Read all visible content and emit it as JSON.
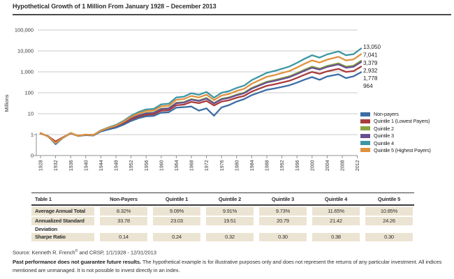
{
  "title": "Hypothetical Growth of 1 Million From January 1928 – December 2013",
  "chart_data": {
    "type": "line",
    "title": "Hypothetical Growth of 1 Million From January 1928 – December 2013",
    "ylabel": "Millions",
    "y_scale": "log",
    "grid": "horizontal",
    "legend_position": "right-bottom",
    "y_ticks": [
      "100,000",
      "10,000",
      "1,000",
      "100",
      "10",
      "1",
      "0"
    ],
    "x_ticks": [
      1928,
      1932,
      1936,
      1940,
      1944,
      1948,
      1952,
      1956,
      1960,
      1964,
      1968,
      1972,
      1976,
      1980,
      1984,
      1988,
      1992,
      1996,
      2000,
      2004,
      2008,
      2012
    ],
    "xlim": [
      1928,
      2013
    ],
    "end_labels": [
      "13,050",
      "7,041",
      "3,379",
      "2,932",
      "1,778",
      "964"
    ],
    "years": [
      1928,
      1930,
      1932,
      1934,
      1936,
      1938,
      1940,
      1942,
      1944,
      1946,
      1948,
      1950,
      1952,
      1954,
      1956,
      1958,
      1960,
      1962,
      1964,
      1966,
      1968,
      1970,
      1972,
      1974,
      1976,
      1978,
      1980,
      1982,
      1984,
      1986,
      1988,
      1990,
      1992,
      1994,
      1996,
      1998,
      2000,
      2002,
      2004,
      2007,
      2009,
      2011,
      2013
    ],
    "series": [
      {
        "name": "Non-payers",
        "color": "#3c6da5",
        "final_value": 964,
        "values": [
          1.14,
          0.85,
          0.35,
          0.72,
          1.14,
          0.85,
          0.95,
          0.9,
          1.41,
          1.77,
          2.16,
          2.97,
          4.5,
          6.1,
          7.5,
          7.8,
          11.2,
          11.8,
          19.5,
          20.6,
          22,
          14,
          18,
          8,
          20,
          26,
          38,
          50,
          77,
          103,
          139,
          160,
          191,
          229,
          307,
          423,
          561,
          416,
          601,
          766,
          500,
          613,
          964
        ]
      },
      {
        "name": "Quintile 1 (Lowest Payers)",
        "color": "#a93c3c",
        "final_value": 1778,
        "values": [
          1.15,
          0.84,
          0.47,
          0.75,
          1.15,
          0.88,
          1.0,
          0.96,
          1.45,
          1.86,
          2.3,
          3.3,
          5.2,
          7.1,
          8.9,
          9.4,
          13.9,
          14.7,
          25.4,
          27.1,
          36.5,
          31.9,
          41,
          24.7,
          38,
          43.9,
          57.8,
          70.8,
          114,
          157,
          216,
          253,
          306,
          373,
          513,
          728,
          990,
          809,
          1067,
          1389,
          990,
          1090,
          1778
        ]
      },
      {
        "name": "Quintile 2",
        "color": "#8aa543",
        "final_value": 3379,
        "values": [
          1.17,
          0.83,
          0.44,
          0.74,
          1.17,
          0.87,
          1.0,
          0.96,
          1.5,
          1.96,
          2.5,
          3.6,
          5.9,
          8.4,
          10.8,
          11.3,
          17.4,
          18.4,
          33.4,
          35.8,
          49.6,
          42.8,
          56.1,
          32.4,
          51.8,
          60.5,
          81.5,
          102,
          170,
          240,
          340,
          404,
          497,
          616,
          872,
          1273,
          1777,
          1428,
          1927,
          2565,
          1777,
          1974,
          3379
        ]
      },
      {
        "name": "Quintile 3",
        "color": "#685090",
        "final_value": 2932,
        "values": [
          1.17,
          0.83,
          0.44,
          0.74,
          1.17,
          0.87,
          1.0,
          0.96,
          1.49,
          1.94,
          2.45,
          3.55,
          5.8,
          8.1,
          10.3,
          10.9,
          16.6,
          17.6,
          31.7,
          33.8,
          46.7,
          40.3,
          52.7,
          30.8,
          48.6,
          56.7,
          76,
          94.7,
          157,
          221,
          310,
          368,
          450,
          556,
          782,
          1135,
          1574,
          1279,
          1722,
          2282,
          1574,
          1746,
          2932
        ]
      },
      {
        "name": "Quintile 4",
        "color": "#3d96a4",
        "final_value": 13050,
        "values": [
          1.2,
          0.8,
          0.38,
          0.7,
          1.2,
          0.85,
          1.0,
          0.95,
          1.6,
          2.2,
          2.9,
          4.5,
          8.0,
          12,
          16,
          17,
          28,
          30,
          60,
          65,
          95,
          80,
          110,
          58,
          100,
          120,
          170,
          220,
          400,
          600,
          900,
          1100,
          1400,
          1800,
          2700,
          4200,
          6200,
          4800,
          6800,
          9500,
          6200,
          7000,
          13050
        ]
      },
      {
        "name": "Quintile 5 (Highest Payers)",
        "color": "#e0913d",
        "final_value": 7041,
        "values": [
          1.19,
          0.81,
          0.4,
          0.72,
          1.19,
          0.86,
          1.0,
          0.95,
          1.55,
          2.1,
          2.7,
          4.1,
          7.0,
          10.2,
          13.4,
          14.1,
          22.5,
          24,
          46,
          50,
          71,
          60,
          81,
          44.5,
          74,
          88,
          122,
          155,
          271,
          395,
          578,
          697,
          875,
          1100,
          1615,
          2440,
          3515,
          2765,
          3835,
          5240,
          3515,
          3936,
          7041
        ]
      }
    ]
  },
  "table": {
    "title": "Table 1",
    "columns": [
      "Non-Payers",
      "Quintile 1",
      "Quintile 2",
      "Quintile 3",
      "Quintile 4",
      "Quintile 5"
    ],
    "rows": [
      {
        "label": "Average Annual Total Return",
        "values": [
          "8.32%",
          "9.09%",
          "9.91%",
          "9.73%",
          "11.65%",
          "10.85%"
        ],
        "gap_before": false
      },
      {
        "label": "Annualized Standard Deviation",
        "values": [
          "33.78",
          "23.03",
          "19.51",
          "20.79",
          "21.42",
          "24.26"
        ],
        "gap_before": false
      },
      {
        "label": "Sharpe Ratio",
        "values": [
          "0.14",
          "0.24",
          "0.32",
          "0.30",
          "0.38",
          "0.30"
        ],
        "gap_before": true
      }
    ]
  },
  "footer": {
    "source_prefix": "Source: Kenneth R. French",
    "source_sup": "©",
    "source_rest": " and CRSP, 1/1/1928 - 12/31/2013",
    "disclaimer_bold": "Past performance does not guarantee future results.",
    "disclaimer_rest": " The hypothetical example is for illustrative purposes only and does not represent the returns of any particular investment. All indices mentioned are unmanaged. It is not possible to invest directly in an index."
  },
  "colors": {
    "title_rule": "#4a4a4a",
    "gridline": "#c9c9c9",
    "axis": "#8f8f8f",
    "table_cell_bg": "#ece4d2",
    "table_border": "#3b3b3b",
    "text": "#2e2e2e"
  }
}
